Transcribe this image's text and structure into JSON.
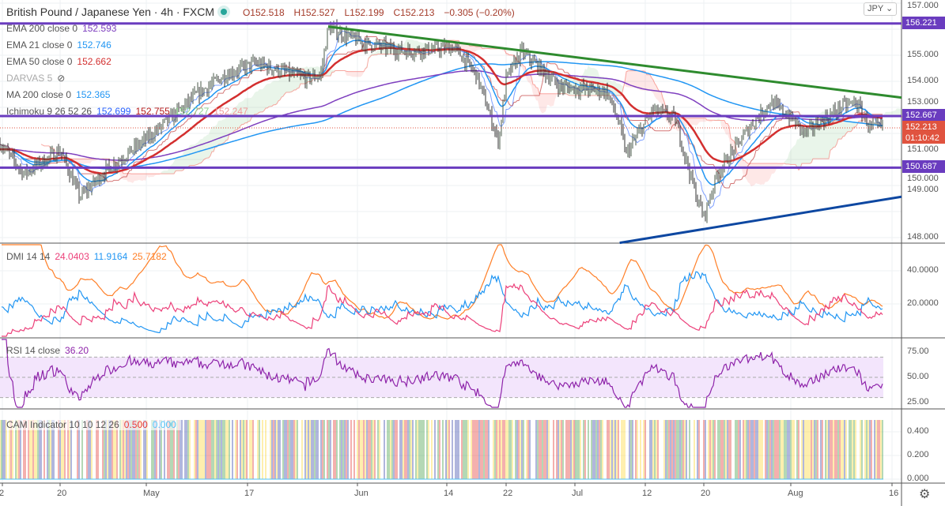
{
  "header": {
    "symbol": "British Pound / Japanese Yen · 4h · FXCM",
    "open": "O152.518",
    "high": "H152.527",
    "low": "L152.199",
    "close": "C152.213",
    "change": "−0.305 (−0.20%)"
  },
  "legend": {
    "ema200": {
      "label": "EMA 200 close 0",
      "value": "152.593",
      "color": "#7e3fbf"
    },
    "ema21": {
      "label": "EMA 21 close 0",
      "value": "152.746",
      "color": "#2196f3"
    },
    "ema50": {
      "label": "EMA 50 close 0",
      "value": "152.662",
      "color": "#d32f2f"
    },
    "darvas": {
      "label": "DARVAS 5"
    },
    "ma200": {
      "label": "MA 200 close 0",
      "value": "152.365",
      "color": "#2196f3"
    },
    "ichimoku": {
      "label": "Ichimoku 9 26 52 26",
      "values": [
        "152.699",
        "152.755",
        "152.727",
        "152.247"
      ]
    }
  },
  "currency": "JPY",
  "price_tags": {
    "top": "156.221",
    "mid": "152.667",
    "last": "152.213",
    "countdown": "01:10:42",
    "low": "150.687"
  },
  "dmi": {
    "label": "DMI 14 14",
    "plus": "24.0403",
    "minus": "11.9164",
    "adx": "25.7182"
  },
  "rsi": {
    "label": "RSI 14 close",
    "value": "36.20"
  },
  "cam": {
    "label": "CAM Indicator 10 10 12 26",
    "v1": "0.500",
    "v2": "0.000"
  },
  "chart_data": {
    "type": "candlestick",
    "price_axis": {
      "ticks": [
        "157.000",
        "155.000",
        "154.000",
        "153.000",
        "151.000",
        "150.000",
        "149.000",
        "148.000"
      ],
      "range": [
        148,
        157
      ]
    },
    "dmi_axis": {
      "ticks": [
        "40.0000",
        "20.0000"
      ]
    },
    "rsi_axis": {
      "ticks": [
        "75.00",
        "50.00",
        "25.00"
      ],
      "band": [
        30,
        70
      ]
    },
    "cam_axis": {
      "ticks": [
        "0.400",
        "0.200",
        "0.000"
      ]
    },
    "time_ticks": [
      {
        "label": "2",
        "date": "2021-04-12"
      },
      {
        "label": "20",
        "date": "2021-04-20"
      },
      {
        "label": "May",
        "date": "2021-05-03"
      },
      {
        "label": "17",
        "date": "2021-05-17"
      },
      {
        "label": "Jun",
        "date": "2021-06-01"
      },
      {
        "label": "14",
        "date": "2021-06-14"
      },
      {
        "label": "22",
        "date": "2021-06-22"
      },
      {
        "label": "Jul",
        "date": "2021-07-01"
      },
      {
        "label": "12",
        "date": "2021-07-12"
      },
      {
        "label": "20",
        "date": "2021-07-20"
      },
      {
        "label": "Aug",
        "date": "2021-08-02"
      },
      {
        "label": "16",
        "date": "2021-08-16"
      }
    ],
    "close_keypoints": [
      [
        "2021-04-12",
        151.5
      ],
      [
        "2021-04-15",
        150.45
      ],
      [
        "2021-04-20",
        151.35
      ],
      [
        "2021-04-23",
        149.55
      ],
      [
        "2021-04-27",
        150.6
      ],
      [
        "2021-05-04",
        152.0
      ],
      [
        "2021-05-10",
        153.5
      ],
      [
        "2021-05-14",
        154.25
      ],
      [
        "2021-05-18",
        154.7
      ],
      [
        "2021-05-25",
        154.1
      ],
      [
        "2021-05-27",
        154.25
      ],
      [
        "2021-05-28",
        156.05
      ],
      [
        "2021-06-02",
        155.45
      ],
      [
        "2021-06-08",
        155.15
      ],
      [
        "2021-06-15",
        155.3
      ],
      [
        "2021-06-18",
        154.25
      ],
      [
        "2021-06-21",
        151.67
      ],
      [
        "2021-06-22",
        154.1
      ],
      [
        "2021-06-24",
        155.15
      ],
      [
        "2021-06-29",
        153.8
      ],
      [
        "2021-07-06",
        153.6
      ],
      [
        "2021-07-08",
        152.3
      ],
      [
        "2021-07-09",
        151.2
      ],
      [
        "2021-07-13",
        152.9
      ],
      [
        "2021-07-16",
        152.6
      ],
      [
        "2021-07-19",
        149.55
      ],
      [
        "2021-07-20",
        148.8
      ],
      [
        "2021-07-22",
        150.45
      ],
      [
        "2021-07-27",
        152.3
      ],
      [
        "2021-07-30",
        153.2
      ],
      [
        "2021-08-02",
        152.6
      ],
      [
        "2021-08-04",
        152.0
      ],
      [
        "2021-08-09",
        153.03
      ],
      [
        "2021-08-11",
        153.2
      ],
      [
        "2021-08-13",
        152.21
      ]
    ],
    "horizontal_lines": [
      156.221,
      152.667,
      150.687
    ],
    "trendlines": [
      {
        "color": "#2e8b2e",
        "from": [
          "2021-05-28",
          156.1
        ],
        "to": [
          "2021-08-18",
          153.35
        ]
      },
      {
        "color": "#0d47a1",
        "from": [
          "2021-07-08",
          147.8
        ],
        "to": [
          "2021-08-18",
          149.6
        ]
      }
    ],
    "colors": {
      "hline": "#6a3cbf",
      "last_tag": "#e0533f",
      "dmi_plus": "#ec407a",
      "dmi_minus": "#2196f3",
      "adx": "#ff7f27",
      "rsi": "#8e24aa",
      "rsi_band": "#f3e5fc",
      "cam": [
        "#e53935",
        "#43a047",
        "#fdd835",
        "#3949ab",
        "#ffffff"
      ]
    }
  }
}
